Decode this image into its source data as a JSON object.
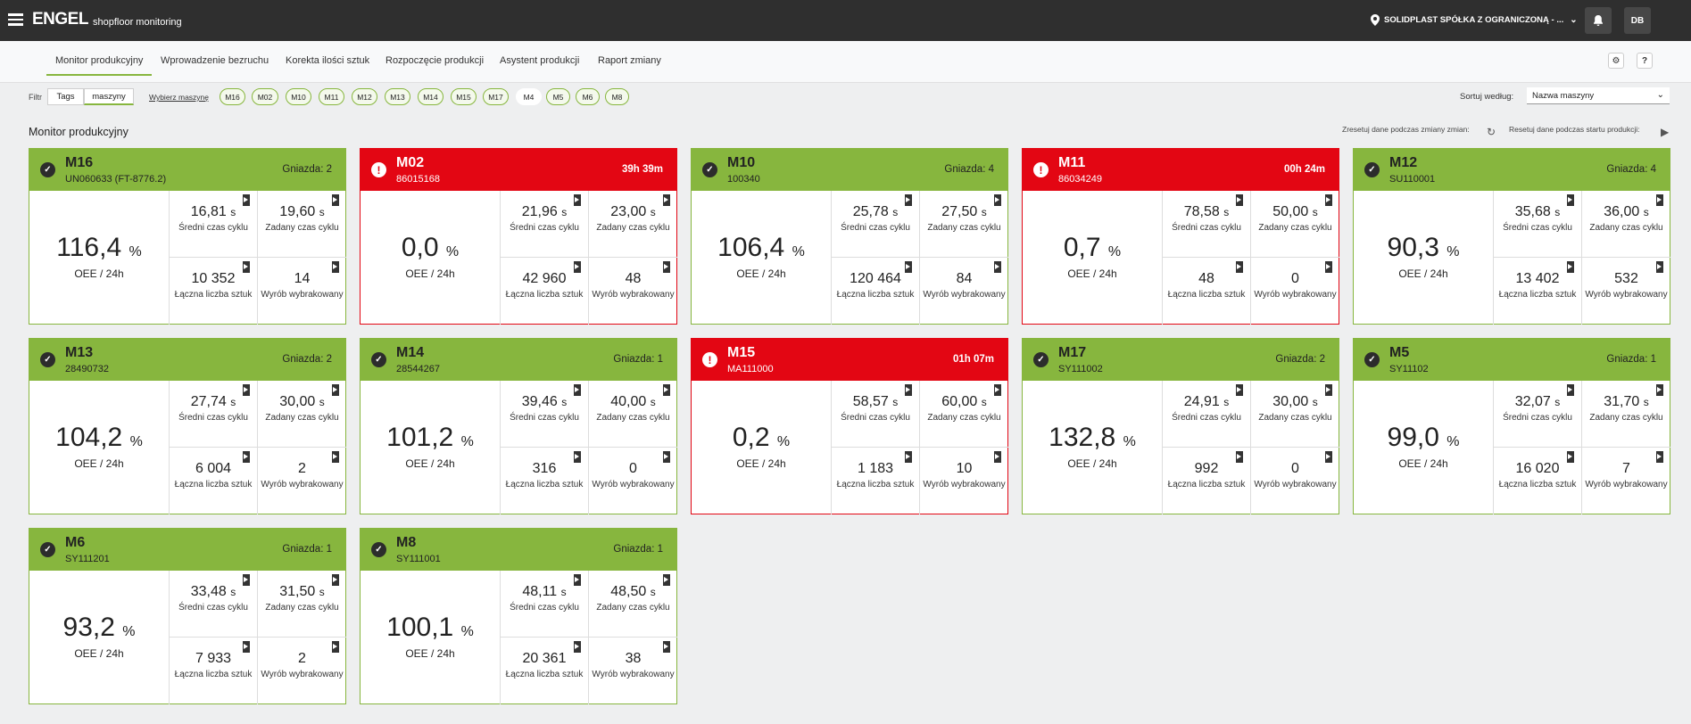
{
  "header": {
    "logo": "ENGEL",
    "subtitle": "shopfloor monitoring",
    "location": "SOLIDPLAST SPÓŁKA Z OGRANICZONĄ - ...",
    "user_initials": "DB"
  },
  "nav": {
    "tabs": [
      {
        "label": "Monitor produkcyjny"
      },
      {
        "label": "Wprowadzenie bezruchu"
      },
      {
        "label": "Korekta ilości sztuk"
      },
      {
        "label": "Rozpoczęcie produkcji"
      },
      {
        "label": "Asystent produkcji"
      },
      {
        "label": "Raport zmiany"
      }
    ],
    "active_tab": "Monitor produkcyjny"
  },
  "filter": {
    "label": "Filtr",
    "segments": [
      "Tags",
      "maszyny"
    ],
    "active_segment": "maszyny",
    "choose_label": "Wybierz maszynę",
    "chips": [
      "M16",
      "M02",
      "M10",
      "M11",
      "M12",
      "M13",
      "M14",
      "M15",
      "M17",
      "M4",
      "M5",
      "M6",
      "M8"
    ],
    "sort_label": "Sortuj według:",
    "sort_value": "Nazwa maszyny"
  },
  "section": {
    "title": "Monitor produkcyjny",
    "reset_shift": "Zresetuj dane podczas zmiany zmian:",
    "reset_start": "Resetuj dane podczas startu produkcji:"
  },
  "labels": {
    "oee": "OEE / 24h",
    "avg_cycle": "Średni czas cyklu",
    "set_cycle": "Zadany czas cyklu",
    "total": "Łączna liczba sztuk",
    "rejected": "Wyrób wybrakowany",
    "unit_pct": "%",
    "unit_s": "s"
  },
  "cards": [
    {
      "name": "M16",
      "order": "UN060633 (FT-8776.2)",
      "right": "Gniazda: 2",
      "status": "ok",
      "oee": "116,4",
      "avg": "16,81",
      "set": "19,60",
      "total": "10 352",
      "rejected": "14"
    },
    {
      "name": "M02",
      "order": "86015168",
      "right": "39h 39m",
      "status": "alert",
      "oee": "0,0",
      "avg": "21,96",
      "set": "23,00",
      "total": "42 960",
      "rejected": "48"
    },
    {
      "name": "M10",
      "order": "100340",
      "right": "Gniazda: 4",
      "status": "ok",
      "oee": "106,4",
      "avg": "25,78",
      "set": "27,50",
      "total": "120 464",
      "rejected": "84"
    },
    {
      "name": "M11",
      "order": "86034249",
      "right": "00h 24m",
      "status": "alert",
      "oee": "0,7",
      "avg": "78,58",
      "set": "50,00",
      "total": "48",
      "rejected": "0"
    },
    {
      "name": "M12",
      "order": "SU110001",
      "right": "Gniazda: 4",
      "status": "ok",
      "oee": "90,3",
      "avg": "35,68",
      "set": "36,00",
      "total": "13 402",
      "rejected": "532"
    },
    {
      "name": "M13",
      "order": "28490732",
      "right": "Gniazda: 2",
      "status": "ok",
      "oee": "104,2",
      "avg": "27,74",
      "set": "30,00",
      "total": "6 004",
      "rejected": "2"
    },
    {
      "name": "M14",
      "order": "28544267",
      "right": "Gniazda: 1",
      "status": "ok",
      "oee": "101,2",
      "avg": "39,46",
      "set": "40,00",
      "total": "316",
      "rejected": "0"
    },
    {
      "name": "M15",
      "order": "MA111000",
      "right": "01h 07m",
      "status": "alert",
      "oee": "0,2",
      "avg": "58,57",
      "set": "60,00",
      "total": "1 183",
      "rejected": "10"
    },
    {
      "name": "M17",
      "order": "SY111002",
      "right": "Gniazda: 2",
      "status": "ok",
      "oee": "132,8",
      "avg": "24,91",
      "set": "30,00",
      "total": "992",
      "rejected": "0"
    },
    {
      "name": "M5",
      "order": "SY11102",
      "right": "Gniazda: 1",
      "status": "ok",
      "oee": "99,0",
      "avg": "32,07",
      "set": "31,70",
      "total": "16 020",
      "rejected": "7"
    },
    {
      "name": "M6",
      "order": "SY111201",
      "right": "Gniazda: 1",
      "status": "ok",
      "oee": "93,2",
      "avg": "33,48",
      "set": "31,50",
      "total": "7 933",
      "rejected": "2"
    },
    {
      "name": "M8",
      "order": "SY111001",
      "right": "Gniazda: 1",
      "status": "ok",
      "oee": "100,1",
      "avg": "48,11",
      "set": "48,50",
      "total": "20 361",
      "rejected": "38"
    }
  ]
}
